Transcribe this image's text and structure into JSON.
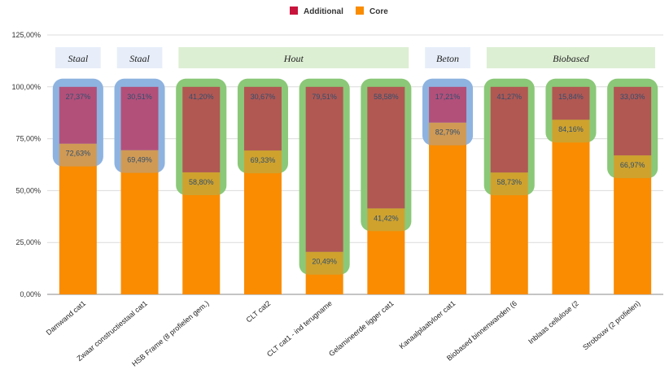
{
  "chart_data": {
    "type": "bar",
    "stacked": true,
    "categories": [
      "Damwand cat1",
      "Zwaar constructiestaal cat1",
      "HSB Frame (8 profielen gem.)",
      "CLT cat2",
      "CLT cat1 - ind terugname",
      "Gelamineerde ligger cat1",
      "Kanaalplaatvloer cat1",
      "Biobased binnenwanden (6",
      "Inblaas cellulose (2",
      "Strobouw (2 profielen)"
    ],
    "series": [
      {
        "name": "Core",
        "color": "#f98c00",
        "values": [
          72.63,
          69.49,
          58.8,
          69.33,
          20.49,
          41.42,
          82.79,
          58.73,
          84.16,
          66.97
        ],
        "labels": [
          "72,63%",
          "69,49%",
          "58,80%",
          "69,33%",
          "20,49%",
          "41,42%",
          "82,79%",
          "58,73%",
          "84,16%",
          "66,97%"
        ]
      },
      {
        "name": "Additional",
        "color": "#c8143c",
        "values": [
          27.37,
          30.51,
          41.2,
          30.67,
          79.51,
          58.58,
          17.21,
          41.27,
          15.84,
          33.03
        ],
        "labels": [
          "27,37%",
          "30,51%",
          "41,20%",
          "30,67%",
          "79,51%",
          "58,58%",
          "17,21%",
          "41,27%",
          "15,84%",
          "33,03%"
        ]
      }
    ],
    "yticks": [
      "0,00%",
      "25,00%",
      "50,00%",
      "75,00%",
      "100,00%",
      "125,00%"
    ],
    "ylim": [
      0,
      125
    ],
    "legend": {
      "position": "top-center",
      "items": [
        "Additional",
        "Core"
      ]
    },
    "groups": [
      {
        "label": "Staal",
        "from": 0,
        "to": 0,
        "color": "#e7eef9"
      },
      {
        "label": "Staal",
        "from": 1,
        "to": 1,
        "color": "#e7eef9"
      },
      {
        "label": "Hout",
        "from": 2,
        "to": 5,
        "color": "#ddefd3"
      },
      {
        "label": "Beton",
        "from": 6,
        "to": 6,
        "color": "#e7eef9"
      },
      {
        "label": "Biobased",
        "from": 7,
        "to": 9,
        "color": "#ddefd3"
      }
    ],
    "bar_highlight": [
      "blue",
      "blue",
      "green",
      "green",
      "green",
      "green",
      "blue",
      "green",
      "green",
      "green"
    ],
    "highlight_colors": {
      "blue": "#8fb3e0",
      "green": "#8cc978"
    }
  }
}
